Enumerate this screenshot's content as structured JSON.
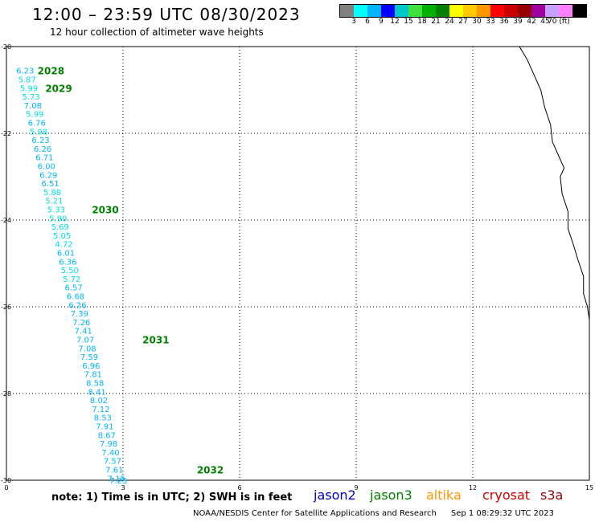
{
  "header": {
    "title": "12:00 – 23:59 UTC 08/30/2023",
    "subtitle": "12 hour collection of altimeter wave heights"
  },
  "legend": {
    "colors": [
      "#808080",
      "#00ffff",
      "#00b4ff",
      "#0000ff",
      "#00c8c8",
      "#40e040",
      "#00b000",
      "#008000",
      "#ffff00",
      "#ffc800",
      "#ff9600",
      "#ff0000",
      "#c80000",
      "#960000",
      "#a000a0",
      "#c8a0ff",
      "#ff80ff",
      "#000000"
    ],
    "labels": [
      "3",
      "6",
      "9",
      "12",
      "15",
      "18",
      "21",
      "24",
      "27",
      "30",
      "33",
      "36",
      "39",
      "42",
      "45",
      "70 (ft)"
    ]
  },
  "axes": {
    "x_ticks": [
      "0",
      "3",
      "6",
      "9",
      "12",
      "15"
    ],
    "y_ticks": [
      "-20",
      "-22",
      "-24",
      "-26",
      "-28",
      "-30"
    ]
  },
  "track": {
    "points": [
      {
        "lon": 0.25,
        "lat": -20.55,
        "v": "6.23"
      },
      {
        "lon": 0.3,
        "lat": -20.75,
        "v": "5.87"
      },
      {
        "lon": 0.35,
        "lat": -20.95,
        "v": "5.99"
      },
      {
        "lon": 0.4,
        "lat": -21.15,
        "v": "5.73"
      },
      {
        "lon": 0.45,
        "lat": -21.35,
        "v": "7.08"
      },
      {
        "lon": 0.5,
        "lat": -21.55,
        "v": "5.99"
      },
      {
        "lon": 0.55,
        "lat": -21.75,
        "v": "6.76"
      },
      {
        "lon": 0.6,
        "lat": -21.95,
        "v": "5.98"
      },
      {
        "lon": 0.65,
        "lat": -22.15,
        "v": "6.23"
      },
      {
        "lon": 0.7,
        "lat": -22.35,
        "v": "6.26"
      },
      {
        "lon": 0.75,
        "lat": -22.55,
        "v": "6.71"
      },
      {
        "lon": 0.8,
        "lat": -22.75,
        "v": "6.00"
      },
      {
        "lon": 0.85,
        "lat": -22.95,
        "v": "6.29"
      },
      {
        "lon": 0.9,
        "lat": -23.15,
        "v": "6.51"
      },
      {
        "lon": 0.95,
        "lat": -23.35,
        "v": "5.88"
      },
      {
        "lon": 1.0,
        "lat": -23.55,
        "v": "5.21"
      },
      {
        "lon": 1.05,
        "lat": -23.75,
        "v": "5.33"
      },
      {
        "lon": 1.1,
        "lat": -23.95,
        "v": "5.90"
      },
      {
        "lon": 1.15,
        "lat": -24.15,
        "v": "5.69"
      },
      {
        "lon": 1.2,
        "lat": -24.35,
        "v": "5.05"
      },
      {
        "lon": 1.25,
        "lat": -24.55,
        "v": "4.72"
      },
      {
        "lon": 1.3,
        "lat": -24.75,
        "v": "6.01"
      },
      {
        "lon": 1.35,
        "lat": -24.95,
        "v": "6.36"
      },
      {
        "lon": 1.4,
        "lat": -25.15,
        "v": "5.50"
      },
      {
        "lon": 1.45,
        "lat": -25.35,
        "v": "5.72"
      },
      {
        "lon": 1.5,
        "lat": -25.55,
        "v": "6.57"
      },
      {
        "lon": 1.55,
        "lat": -25.75,
        "v": "6.68"
      },
      {
        "lon": 1.6,
        "lat": -25.95,
        "v": "6.26"
      },
      {
        "lon": 1.65,
        "lat": -26.15,
        "v": "7.39"
      },
      {
        "lon": 1.7,
        "lat": -26.35,
        "v": "7.26"
      },
      {
        "lon": 1.75,
        "lat": -26.55,
        "v": "7.41"
      },
      {
        "lon": 1.8,
        "lat": -26.75,
        "v": "7.07"
      },
      {
        "lon": 1.85,
        "lat": -26.95,
        "v": "7.08"
      },
      {
        "lon": 1.9,
        "lat": -27.15,
        "v": "7.59"
      },
      {
        "lon": 1.95,
        "lat": -27.35,
        "v": "6.96"
      },
      {
        "lon": 2.0,
        "lat": -27.55,
        "v": "7.81"
      },
      {
        "lon": 2.05,
        "lat": -27.75,
        "v": "8.58"
      },
      {
        "lon": 2.1,
        "lat": -27.95,
        "v": "8.41"
      },
      {
        "lon": 2.15,
        "lat": -28.15,
        "v": "8.02"
      },
      {
        "lon": 2.2,
        "lat": -28.35,
        "v": "7.12"
      },
      {
        "lon": 2.25,
        "lat": -28.55,
        "v": "8.53"
      },
      {
        "lon": 2.3,
        "lat": -28.75,
        "v": "7.91"
      },
      {
        "lon": 2.35,
        "lat": -28.95,
        "v": "8.67"
      },
      {
        "lon": 2.4,
        "lat": -29.15,
        "v": "7.98"
      },
      {
        "lon": 2.45,
        "lat": -29.35,
        "v": "7.40"
      },
      {
        "lon": 2.5,
        "lat": -29.55,
        "v": "7.57"
      },
      {
        "lon": 2.55,
        "lat": -29.75,
        "v": "7.61"
      },
      {
        "lon": 2.6,
        "lat": -29.95,
        "v": "7.15"
      },
      {
        "lon": 2.65,
        "lat": -30.0,
        "v": "7.25"
      }
    ],
    "time_marks": [
      {
        "lon": 0.8,
        "lat": -20.55,
        "t": "2028"
      },
      {
        "lon": 1.0,
        "lat": -20.95,
        "t": "2029"
      },
      {
        "lon": 2.2,
        "lat": -23.75,
        "t": "2030"
      },
      {
        "lon": 3.5,
        "lat": -26.75,
        "t": "2031"
      },
      {
        "lon": 4.9,
        "lat": -29.75,
        "t": "2032"
      }
    ]
  },
  "coastline": [
    [
      13.2,
      -20
    ],
    [
      13.4,
      -20.3
    ],
    [
      13.6,
      -20.7
    ],
    [
      13.75,
      -21.0
    ],
    [
      13.85,
      -21.4
    ],
    [
      14.0,
      -21.8
    ],
    [
      14.05,
      -22.2
    ],
    [
      14.2,
      -22.5
    ],
    [
      14.35,
      -22.8
    ],
    [
      14.25,
      -23.0
    ],
    [
      14.3,
      -23.4
    ],
    [
      14.45,
      -23.8
    ],
    [
      14.45,
      -24.2
    ],
    [
      14.6,
      -24.6
    ],
    [
      14.7,
      -24.9
    ],
    [
      14.85,
      -25.3
    ],
    [
      14.85,
      -25.7
    ],
    [
      14.95,
      -26.0
    ],
    [
      15.0,
      -26.3
    ]
  ],
  "notes": {
    "text": "note:  1) Time is in UTC;  2) SWH is in feet"
  },
  "satellites": [
    {
      "name": "jason2",
      "color": "#0000c8"
    },
    {
      "name": "jason3",
      "color": "#008000"
    },
    {
      "name": "altika",
      "color": "#ff9600"
    },
    {
      "name": "cryosat",
      "color": "#c80000"
    },
    {
      "name": "s3a",
      "color": "#960000"
    }
  ],
  "colors": {
    "swh_light": "#00e0e0",
    "swh_mid": "#00b4ff",
    "time_mark": "#008000"
  },
  "footer": {
    "org": "NOAA/NESDIS Center for Satellite Applications and Research",
    "timestamp": "Sep  1 08:29:32 UTC 2023"
  }
}
